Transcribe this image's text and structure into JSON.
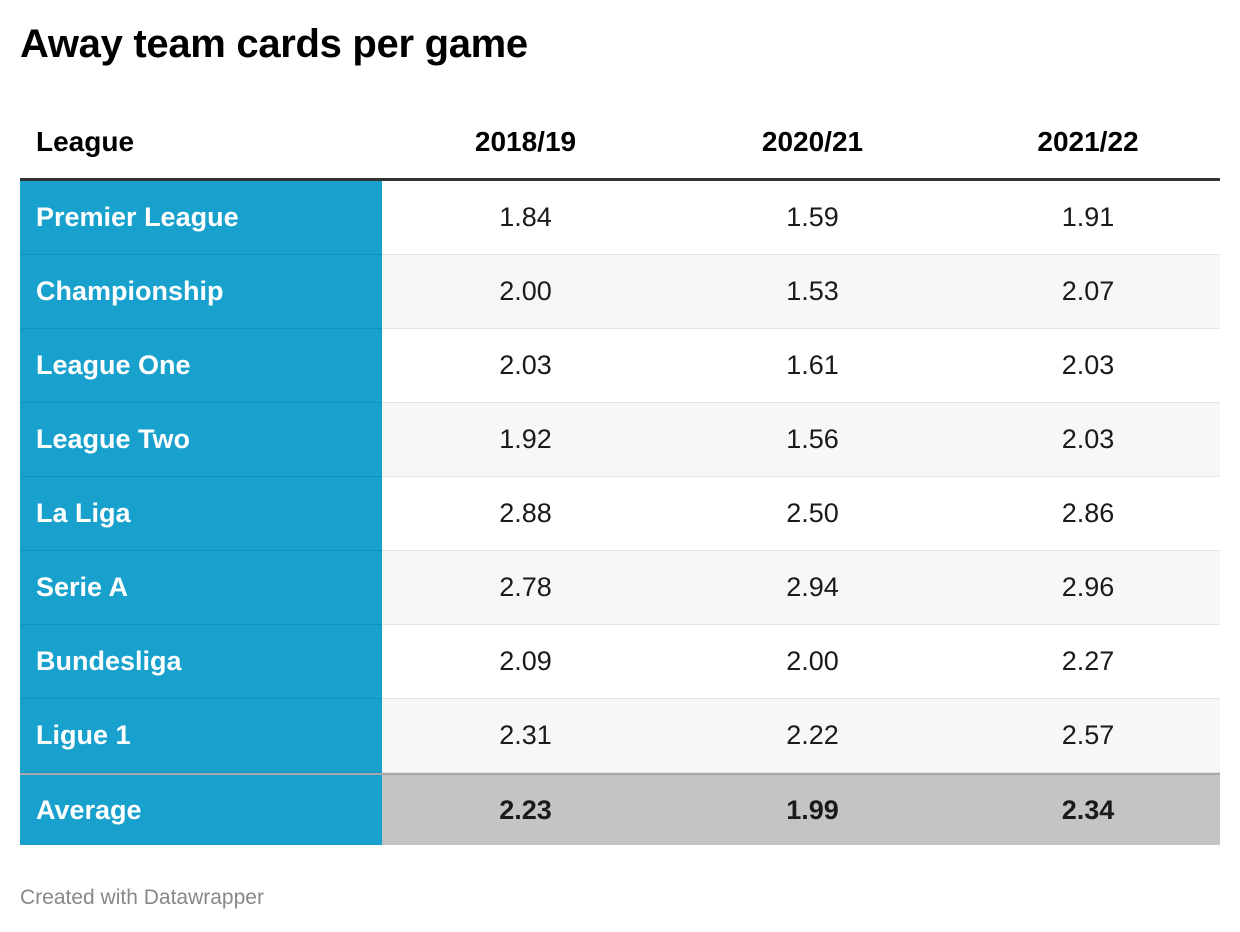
{
  "header": {
    "title": "Away team cards per game"
  },
  "footer": {
    "credit": "Created with Datawrapper"
  },
  "colors": {
    "league_column": "#18a1cd",
    "average_row": "#c4c4c4"
  },
  "chart_data": {
    "type": "table",
    "title": "Away team cards per game",
    "columns": [
      "League",
      "2018/19",
      "2020/21",
      "2021/22"
    ],
    "rows": [
      {
        "league": "Premier League",
        "values": [
          "1.84",
          "1.59",
          "1.91"
        ]
      },
      {
        "league": "Championship",
        "values": [
          "2.00",
          "1.53",
          "2.07"
        ]
      },
      {
        "league": "League One",
        "values": [
          "2.03",
          "1.61",
          "2.03"
        ]
      },
      {
        "league": "League Two",
        "values": [
          "1.92",
          "1.56",
          "2.03"
        ]
      },
      {
        "league": "La Liga",
        "values": [
          "2.88",
          "2.50",
          "2.86"
        ]
      },
      {
        "league": "Serie A",
        "values": [
          "2.78",
          "2.94",
          "2.96"
        ]
      },
      {
        "league": "Bundesliga",
        "values": [
          "2.09",
          "2.00",
          "2.27"
        ]
      },
      {
        "league": "Ligue 1",
        "values": [
          "2.31",
          "2.22",
          "2.57"
        ]
      }
    ],
    "average": {
      "league": "Average",
      "values": [
        "2.23",
        "1.99",
        "2.34"
      ]
    }
  }
}
